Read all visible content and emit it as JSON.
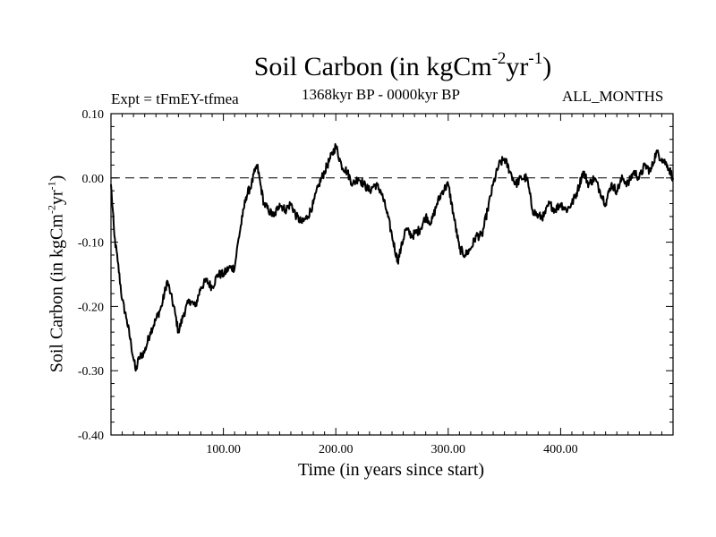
{
  "chart_data": {
    "type": "line",
    "title": "Soil Carbon (in kgCm",
    "title_sup1": "-2",
    "title_mid": "yr",
    "title_sup2": "-1",
    "title_end": ")",
    "experiment": "Expt = tFmEY-tfmea",
    "period": "1368kyr BP - 0000kyr BP",
    "months": "ALL_MONTHS",
    "xlabel": "Time (in years since start)",
    "ylabel": "Soil Carbon (in kgCm",
    "ylabel_sup1": "-2",
    "ylabel_mid": "yr",
    "ylabel_sup2": "-1",
    "ylabel_end": ")",
    "xlim": [
      0,
      500
    ],
    "ylim": [
      -0.4,
      0.1
    ],
    "xticks": [
      100,
      200,
      300,
      400
    ],
    "xtick_labels": [
      "100.00",
      "200.00",
      "300.00",
      "400.00"
    ],
    "yticks": [
      -0.4,
      -0.3,
      -0.2,
      -0.1,
      0.0,
      0.1
    ],
    "ytick_labels": [
      "-0.40",
      "-0.30",
      "-0.20",
      "-0.10",
      "0.00",
      "0.10"
    ],
    "reference_line": 0.0,
    "series": [
      {
        "name": "Soil Carbon",
        "x": [
          0,
          3,
          6,
          10,
          14,
          18,
          22,
          25,
          30,
          35,
          40,
          45,
          50,
          53,
          57,
          60,
          65,
          70,
          75,
          80,
          85,
          90,
          95,
          100,
          105,
          110,
          113,
          117,
          120,
          125,
          128,
          130,
          133,
          136,
          140,
          145,
          150,
          155,
          160,
          165,
          170,
          175,
          180,
          185,
          190,
          195,
          200,
          205,
          210,
          215,
          220,
          225,
          230,
          235,
          240,
          245,
          250,
          255,
          258,
          262,
          268,
          275,
          280,
          285,
          290,
          295,
          300,
          305,
          310,
          315,
          320,
          325,
          330,
          335,
          340,
          345,
          350,
          355,
          360,
          365,
          370,
          375,
          380,
          385,
          390,
          395,
          400,
          405,
          410,
          415,
          420,
          425,
          430,
          435,
          440,
          445,
          450,
          455,
          460,
          465,
          470,
          475,
          480,
          485,
          490,
          495,
          500
        ],
        "y": [
          -0.01,
          -0.09,
          -0.13,
          -0.19,
          -0.22,
          -0.26,
          -0.3,
          -0.28,
          -0.27,
          -0.24,
          -0.22,
          -0.2,
          -0.16,
          -0.18,
          -0.21,
          -0.24,
          -0.21,
          -0.19,
          -0.2,
          -0.17,
          -0.16,
          -0.17,
          -0.15,
          -0.15,
          -0.14,
          -0.14,
          -0.1,
          -0.06,
          -0.03,
          -0.01,
          0.01,
          0.02,
          -0.01,
          -0.04,
          -0.05,
          -0.06,
          -0.04,
          -0.05,
          -0.04,
          -0.06,
          -0.07,
          -0.06,
          -0.04,
          -0.01,
          0.01,
          0.03,
          0.05,
          0.02,
          0.01,
          -0.01,
          0.0,
          -0.01,
          -0.02,
          -0.01,
          -0.02,
          -0.05,
          -0.09,
          -0.13,
          -0.11,
          -0.08,
          -0.09,
          -0.08,
          -0.06,
          -0.07,
          -0.04,
          -0.02,
          -0.01,
          -0.06,
          -0.11,
          -0.12,
          -0.11,
          -0.09,
          -0.09,
          -0.05,
          -0.01,
          0.02,
          0.03,
          0.01,
          -0.01,
          0.0,
          0.0,
          -0.05,
          -0.06,
          -0.06,
          -0.04,
          -0.05,
          -0.04,
          -0.05,
          -0.04,
          -0.02,
          0.01,
          -0.01,
          0.0,
          -0.02,
          -0.04,
          -0.01,
          -0.02,
          0.0,
          -0.01,
          0.01,
          0.0,
          0.02,
          0.01,
          0.04,
          0.03,
          0.02,
          0.0
        ]
      }
    ]
  }
}
